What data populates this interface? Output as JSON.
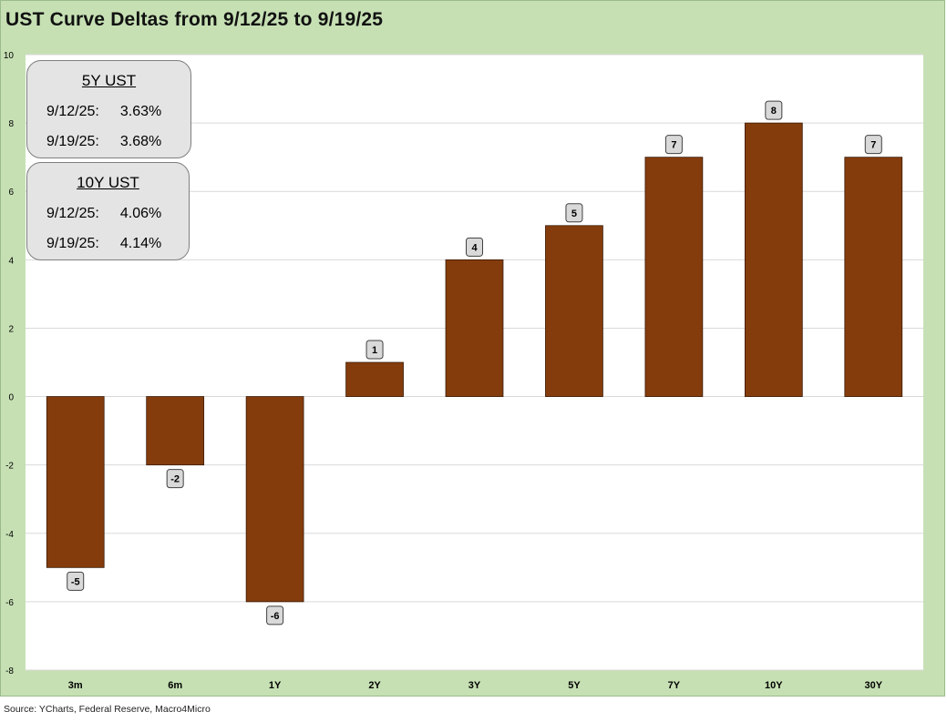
{
  "title": "UST Curve Deltas from 9/12/25 to 9/19/25",
  "source": "Source: YCharts, Federal Reserve, Macro4Micro",
  "colors": {
    "bar": "#843c0c",
    "bar_stroke": "#3a1a06",
    "frame_bg": "#c6e0b4",
    "label_bg": "#d9d9d9"
  },
  "boxes": [
    {
      "header": "5Y UST",
      "rows": [
        {
          "date": "9/12/25:",
          "value": "3.63%"
        },
        {
          "date": "9/19/25:",
          "value": "3.68%"
        }
      ]
    },
    {
      "header": "10Y UST",
      "rows": [
        {
          "date": "9/12/25:",
          "value": "4.06%"
        },
        {
          "date": "9/19/25:",
          "value": "4.14%"
        }
      ]
    }
  ],
  "chart_data": {
    "type": "bar",
    "title": "UST Curve Deltas from 9/12/25 to 9/19/25",
    "categories": [
      "3m",
      "6m",
      "1Y",
      "2Y",
      "3Y",
      "5Y",
      "7Y",
      "10Y",
      "30Y"
    ],
    "values": [
      -5,
      -2,
      -6,
      1,
      4,
      5,
      7,
      8,
      7
    ],
    "ylim": [
      -8,
      10
    ],
    "yticks": [
      10,
      8,
      6,
      4,
      2,
      0,
      -2,
      -4,
      -6,
      -8
    ],
    "grid": true,
    "xlabel": "",
    "ylabel": ""
  }
}
